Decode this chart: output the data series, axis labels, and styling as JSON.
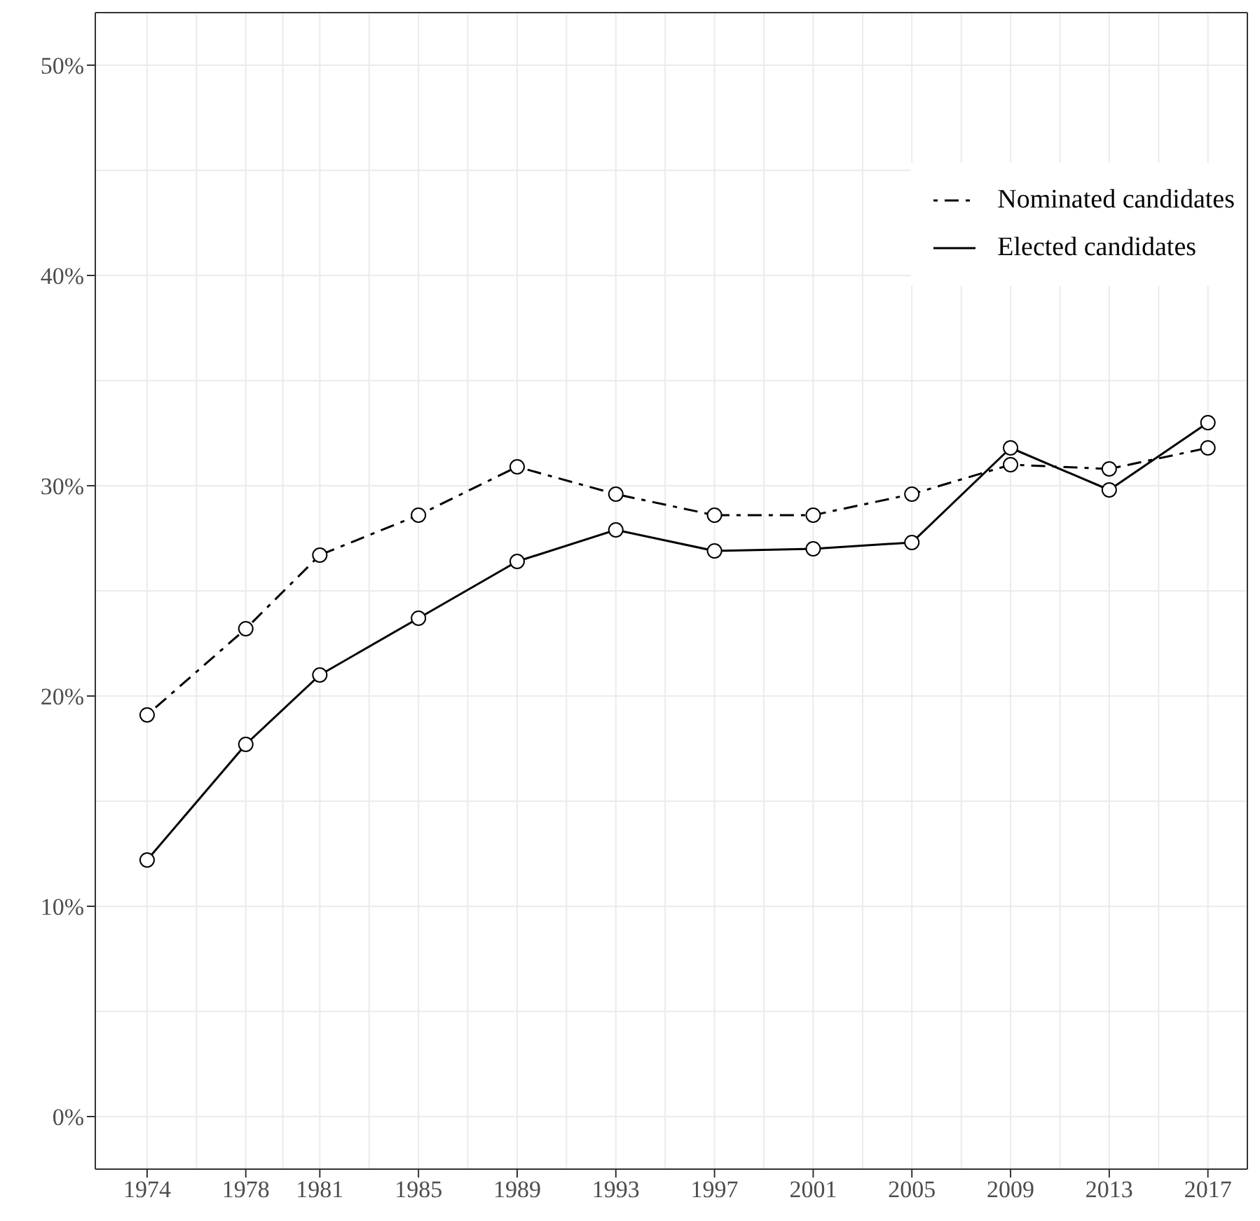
{
  "chart_data": {
    "type": "line",
    "x": [
      1974,
      1978,
      1981,
      1985,
      1989,
      1993,
      1997,
      2001,
      2005,
      2009,
      2013,
      2017
    ],
    "xlim": [
      1971.9,
      2018.6
    ],
    "xticks": [
      1974,
      1978,
      1981,
      1985,
      1989,
      1993,
      1997,
      2001,
      2005,
      2009,
      2013,
      2017
    ],
    "ylim": [
      -2.5,
      52.5
    ],
    "yticks": [
      {
        "value": 0,
        "label": "0%"
      },
      {
        "value": 10,
        "label": "10%"
      },
      {
        "value": 20,
        "label": "20%"
      },
      {
        "value": 30,
        "label": "30%"
      },
      {
        "value": 40,
        "label": "40%"
      },
      {
        "value": 50,
        "label": "50%"
      }
    ],
    "series": [
      {
        "name": "Nominated candidates",
        "color": "#000000",
        "line_style": "dashed",
        "values": [
          19.1,
          23.2,
          26.7,
          28.6,
          30.9,
          29.6,
          28.6,
          28.6,
          29.6,
          31.0,
          30.8,
          31.8
        ]
      },
      {
        "name": "Elected candidates",
        "color": "#000000",
        "line_style": "solid",
        "values": [
          12.2,
          17.7,
          21.0,
          23.7,
          26.4,
          27.9,
          26.9,
          27.0,
          27.3,
          31.8,
          29.8,
          33.0
        ]
      }
    ],
    "marker": "circle",
    "grid": true,
    "legend": "top right"
  }
}
